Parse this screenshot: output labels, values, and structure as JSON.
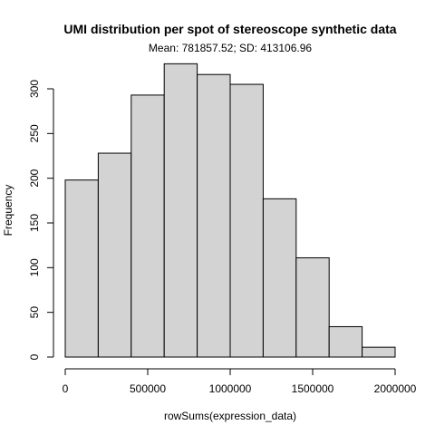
{
  "chart_data": {
    "type": "bar",
    "title": "UMI distribution per spot of stereoscope synthetic data",
    "subtitle": "Mean: 781857.52; SD: 413106.96",
    "xlabel": "rowSums(expression_data)",
    "ylabel": "Frequency",
    "bin_edges": [
      0,
      200000,
      400000,
      600000,
      800000,
      1000000,
      1200000,
      1400000,
      1600000,
      1800000,
      2000000
    ],
    "values": [
      198,
      228,
      293,
      328,
      316,
      305,
      177,
      111,
      34,
      11
    ],
    "xlim": [
      0,
      2000000
    ],
    "ylim": [
      0,
      330
    ],
    "x_ticks": [
      0,
      500000,
      1000000,
      1500000,
      2000000
    ],
    "x_tick_labels": [
      "0",
      "500000",
      "1000000",
      "1500000",
      "2000000"
    ],
    "y_ticks": [
      0,
      50,
      100,
      150,
      200,
      250,
      300
    ],
    "y_tick_labels": [
      "0",
      "50",
      "100",
      "150",
      "200",
      "250",
      "300"
    ],
    "bar_fill": "#d3d3d3",
    "bar_stroke": "#000000",
    "background": "#ffffff",
    "grid": false,
    "legend": "none"
  }
}
